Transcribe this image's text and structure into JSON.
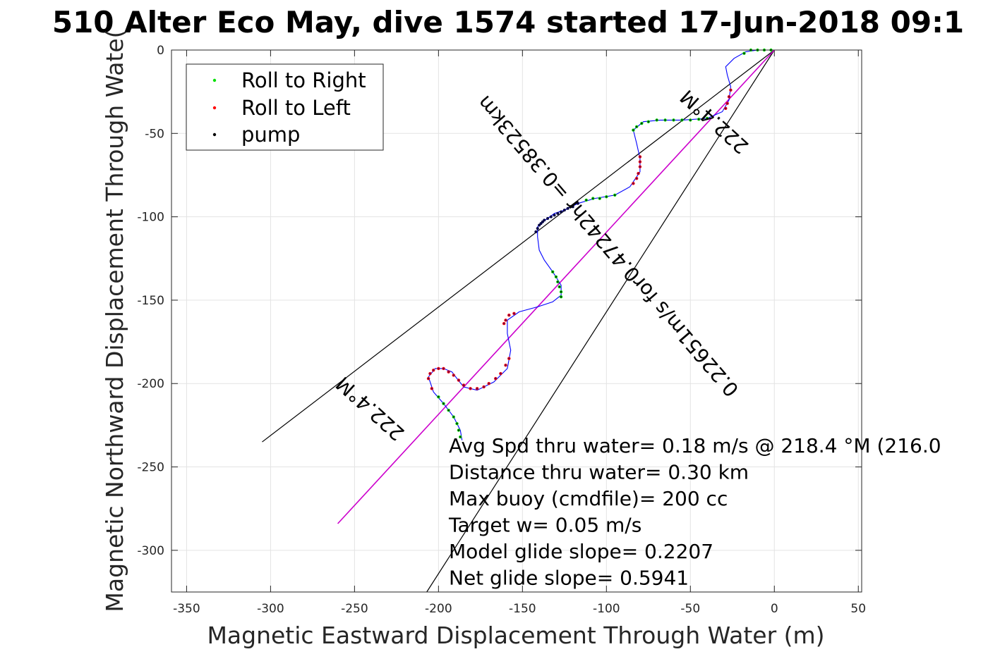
{
  "title": "510 Alter Eco May, dive 1574 started 17-Jun-2018 09:1",
  "chart_data": {
    "type": "line",
    "title": "510 Alter Eco May, dive 1574 started 17-Jun-2018 09:1",
    "xlabel": "Magnetic Eastward Displacement Through Water (m)",
    "ylabel": "Magnetic Northward Displacement Through Wate(",
    "xlim": [
      -359,
      52
    ],
    "ylim": [
      -325,
      0
    ],
    "xticks": [
      -350,
      -300,
      -250,
      -200,
      -150,
      -100,
      -50,
      0,
      50
    ],
    "yticks": [
      0,
      -50,
      -100,
      -150,
      -200,
      -250,
      -300
    ],
    "grid": true,
    "legend": {
      "placement": "top-left",
      "entries": [
        "Roll to Right",
        "Roll to Left",
        "pump"
      ]
    },
    "colors": {
      "right": "#00e000",
      "left": "#ff0000",
      "pump": "#000000",
      "track": "#0000ff",
      "heading": "#cc00cc",
      "cone": "#000000"
    },
    "track": [
      [
        0,
        0
      ],
      [
        -4,
        0
      ],
      [
        -10,
        0
      ],
      [
        -17,
        -1
      ],
      [
        -24,
        -5
      ],
      [
        -29,
        -10
      ],
      [
        -28,
        -15
      ],
      [
        -26,
        -22
      ],
      [
        -27,
        -30
      ],
      [
        -31,
        -37
      ],
      [
        -40,
        -41
      ],
      [
        -55,
        -42
      ],
      [
        -68,
        -42
      ],
      [
        -78,
        -43
      ],
      [
        -84,
        -48
      ],
      [
        -82,
        -56
      ],
      [
        -80,
        -65
      ],
      [
        -80,
        -73
      ],
      [
        -86,
        -82
      ],
      [
        -95,
        -87
      ],
      [
        -107,
        -89
      ],
      [
        -117,
        -92
      ],
      [
        -125,
        -96
      ],
      [
        -131,
        -98
      ],
      [
        -135,
        -101
      ],
      [
        -138,
        -103
      ],
      [
        -141,
        -106
      ],
      [
        -141,
        -112
      ],
      [
        -140,
        -120
      ],
      [
        -137,
        -126
      ],
      [
        -132,
        -133
      ],
      [
        -127,
        -141
      ],
      [
        -127,
        -147
      ],
      [
        -132,
        -151
      ],
      [
        -141,
        -154
      ],
      [
        -152,
        -157
      ],
      [
        -159,
        -162
      ],
      [
        -159,
        -170
      ],
      [
        -157,
        -180
      ],
      [
        -159,
        -191
      ],
      [
        -167,
        -199
      ],
      [
        -177,
        -204
      ],
      [
        -185,
        -202
      ],
      [
        -189,
        -197
      ],
      [
        -192,
        -193
      ],
      [
        -197,
        -191
      ],
      [
        -202,
        -191
      ],
      [
        -206,
        -196
      ],
      [
        -203,
        -205
      ],
      [
        -197,
        -212
      ],
      [
        -191,
        -220
      ],
      [
        -187,
        -228
      ],
      [
        -186,
        -234
      ]
    ],
    "roll_right": [
      [
        -2,
        0
      ],
      [
        -6,
        0
      ],
      [
        -10,
        0
      ],
      [
        -14,
        0
      ],
      [
        -18,
        -2
      ],
      [
        -40,
        -41
      ],
      [
        -45,
        -41.5
      ],
      [
        -50,
        -42
      ],
      [
        -55,
        -42
      ],
      [
        -60,
        -42
      ],
      [
        -65,
        -42
      ],
      [
        -70,
        -42
      ],
      [
        -75,
        -43
      ],
      [
        -79,
        -44
      ],
      [
        -82,
        -46
      ],
      [
        -84,
        -48
      ],
      [
        -95,
        -87
      ],
      [
        -100,
        -88
      ],
      [
        -104,
        -89
      ],
      [
        -108,
        -89
      ],
      [
        -112,
        -90
      ],
      [
        -132,
        -133
      ],
      [
        -130,
        -136
      ],
      [
        -129,
        -139
      ],
      [
        -128,
        -142
      ],
      [
        -127,
        -145
      ],
      [
        -127,
        -148
      ],
      [
        -200,
        -208
      ],
      [
        -197,
        -212
      ],
      [
        -194,
        -216
      ],
      [
        -191,
        -220
      ],
      [
        -189,
        -224
      ],
      [
        -188,
        -228
      ],
      [
        -187,
        -232
      ]
    ],
    "roll_left": [
      [
        -26,
        -24
      ],
      [
        -27,
        -28
      ],
      [
        -28,
        -32
      ],
      [
        -29,
        -35
      ],
      [
        -80,
        -64
      ],
      [
        -80,
        -67
      ],
      [
        -80,
        -70
      ],
      [
        -81,
        -74
      ],
      [
        -82,
        -77
      ],
      [
        -84,
        -80
      ],
      [
        -155,
        -158
      ],
      [
        -158,
        -159
      ],
      [
        -160,
        -162
      ],
      [
        -161,
        -164
      ],
      [
        -158,
        -185
      ],
      [
        -160,
        -189
      ],
      [
        -163,
        -194
      ],
      [
        -166,
        -197
      ],
      [
        -170,
        -200
      ],
      [
        -173,
        -202
      ],
      [
        -177,
        -203
      ],
      [
        -181,
        -203
      ],
      [
        -185,
        -201
      ],
      [
        -188,
        -198
      ],
      [
        -191,
        -195
      ],
      [
        -194,
        -193
      ],
      [
        -197,
        -191
      ],
      [
        -200,
        -191
      ],
      [
        -203,
        -192
      ],
      [
        -205,
        -194
      ],
      [
        -206,
        -197
      ],
      [
        -204,
        -203
      ]
    ],
    "pump": [
      [
        -117,
        -92
      ],
      [
        -120,
        -94
      ],
      [
        -123,
        -95
      ],
      [
        -125,
        -96
      ],
      [
        -127,
        -97
      ],
      [
        -129,
        -98
      ],
      [
        -131,
        -99
      ],
      [
        -133,
        -100
      ],
      [
        -135,
        -101
      ],
      [
        -137,
        -102
      ],
      [
        -138,
        -103
      ],
      [
        -139,
        -104
      ],
      [
        -140,
        -105
      ],
      [
        -141,
        -107
      ],
      [
        -142,
        -109
      ]
    ],
    "heading_line": [
      [
        0,
        0
      ],
      [
        -260,
        -284
      ]
    ],
    "cone_lines": [
      [
        [
          0,
          0
        ],
        [
          -305,
          -235
        ]
      ],
      [
        [
          0,
          0
        ],
        [
          -207,
          -325
        ]
      ]
    ],
    "rotated_labels": [
      {
        "text": "222.4°M",
        "x": -238,
        "y": -212,
        "angle_deg": -137.8
      },
      {
        "text": "222.4°M",
        "x": -33,
        "y": -40,
        "angle_deg": -137.8
      },
      {
        "text": "0.22651m/s for0.47242hr =0.38523km",
        "x": -96,
        "y": -115,
        "angle_deg": -130.6
      }
    ],
    "annotations": [
      "Avg Spd thru water=  0.18 m/s @ 218.4 °M (216.0",
      "Distance thru water=  0.30 km",
      "Max buoy (cmdfile)= 200 cc",
      "Target w= 0.05 m/s",
      "Model glide slope= 0.2207",
      "Net glide slope= 0.5941"
    ]
  }
}
